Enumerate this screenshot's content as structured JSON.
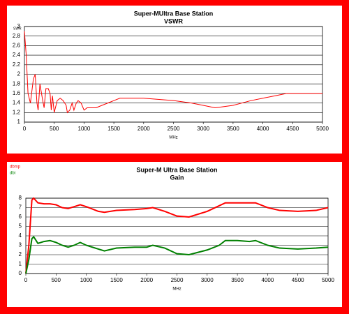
{
  "chart_data": [
    {
      "type": "line",
      "title": "Super-MUltra Base Station",
      "subtitle": "VSWR",
      "y_label": "SWR",
      "x_label": "MHz",
      "color": "#ff0000",
      "x": [
        0,
        30,
        60,
        100,
        150,
        180,
        210,
        230,
        260,
        300,
        330,
        360,
        400,
        430,
        450,
        470,
        500,
        550,
        600,
        650,
        700,
        720,
        760,
        800,
        830,
        870,
        900,
        950,
        1000,
        1050,
        1100,
        1200,
        1300,
        1400,
        1500,
        1600,
        2000,
        2500,
        2800,
        3000,
        3200,
        3500,
        3800,
        4000,
        4200,
        4400,
        4600,
        5000
      ],
      "values": [
        2.9,
        2.4,
        1.6,
        1.4,
        1.9,
        2.0,
        1.4,
        1.25,
        1.8,
        1.5,
        1.3,
        1.7,
        1.7,
        1.6,
        1.25,
        1.55,
        1.2,
        1.45,
        1.5,
        1.45,
        1.35,
        1.2,
        1.25,
        1.4,
        1.25,
        1.4,
        1.45,
        1.4,
        1.25,
        1.3,
        1.3,
        1.3,
        1.35,
        1.4,
        1.45,
        1.5,
        1.5,
        1.45,
        1.4,
        1.35,
        1.3,
        1.35,
        1.45,
        1.5,
        1.55,
        1.6,
        1.6,
        1.6
      ],
      "xlim": [
        0,
        5000
      ],
      "xticks": [
        0,
        500,
        1000,
        1500,
        2000,
        2500,
        3000,
        3500,
        4000,
        4500,
        5000
      ],
      "ylim": [
        1,
        3
      ],
      "yticks": [
        1,
        1.2,
        1.4,
        1.6,
        1.8,
        2,
        2.2,
        2.4,
        2.6,
        2.8,
        3
      ],
      "grid": true
    },
    {
      "type": "line",
      "title": "Super-M Ultra Base Station",
      "subtitle": "Gain",
      "x_label": "MHz",
      "legend": "upper left",
      "x": [
        0,
        50,
        100,
        130,
        200,
        300,
        400,
        500,
        600,
        700,
        800,
        900,
        1000,
        1200,
        1300,
        1500,
        1800,
        2000,
        2100,
        2300,
        2500,
        2700,
        3000,
        3200,
        3300,
        3500,
        3700,
        3800,
        4000,
        4200,
        4500,
        4800,
        5000
      ],
      "series": [
        {
          "name": "dbmp",
          "color": "#ff0000",
          "values": [
            0,
            3,
            7.8,
            8,
            7.5,
            7.4,
            7.4,
            7.3,
            7.0,
            6.9,
            7.1,
            7.3,
            7.1,
            6.6,
            6.5,
            6.7,
            6.8,
            6.9,
            7.0,
            6.6,
            6.1,
            6.0,
            6.6,
            7.2,
            7.5,
            7.5,
            7.5,
            7.5,
            7.0,
            6.7,
            6.6,
            6.7,
            7.0
          ]
        },
        {
          "name": "dbi",
          "color": "#008000",
          "values": [
            0,
            1.5,
            3.7,
            3.9,
            3.2,
            3.4,
            3.5,
            3.3,
            3.0,
            2.8,
            3.0,
            3.3,
            3.0,
            2.6,
            2.4,
            2.7,
            2.8,
            2.8,
            3.0,
            2.7,
            2.1,
            2.0,
            2.5,
            3.0,
            3.5,
            3.5,
            3.4,
            3.5,
            3.0,
            2.7,
            2.6,
            2.7,
            2.8
          ]
        }
      ],
      "xlim": [
        0,
        5000
      ],
      "xticks": [
        0,
        500,
        1000,
        1500,
        2000,
        2500,
        3000,
        3500,
        4000,
        4500,
        5000
      ],
      "ylim": [
        0,
        8
      ],
      "yticks": [
        0,
        1,
        2,
        3,
        4,
        5,
        6,
        7,
        8
      ],
      "grid": true
    }
  ]
}
